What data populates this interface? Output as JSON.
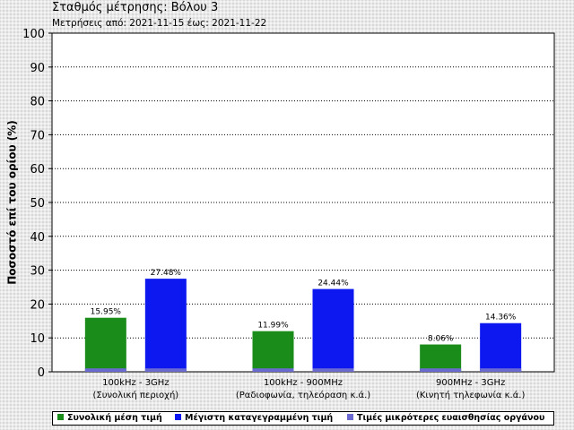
{
  "title": "Σταθμός μέτρησης: Βόλου 3",
  "subtitle": "Μετρήσεις από: 2021-11-15 έως: 2021-11-22",
  "colors": {
    "average": "#1a8c1a",
    "maximum": "#0d17f0",
    "below_sensitivity": "#6a6ad0"
  },
  "chart_data": {
    "type": "bar",
    "ylabel": "Ποσοστό επί του ορίου (%)",
    "ylim": [
      0,
      100
    ],
    "yticks": [
      0,
      10,
      20,
      30,
      40,
      50,
      60,
      70,
      80,
      90,
      100
    ],
    "grid": true,
    "legend_position": "bottom",
    "categories": [
      {
        "line1": "100kHz - 3GHz",
        "line2": "(Συνολική περιοχή)"
      },
      {
        "line1": "100kHz - 900MHz",
        "line2": "(Ραδιοφωνία, τηλεόραση κ.ά.)"
      },
      {
        "line1": "900MHz - 3GHz",
        "line2": "(Κινητή τηλεφωνία κ.ά.)"
      }
    ],
    "series": [
      {
        "name": "Συνολική μέση τιμή",
        "values": [
          15.95,
          11.99,
          8.06
        ],
        "labels": [
          "15.95%",
          "11.99%",
          "8.06%"
        ]
      },
      {
        "name": "Μέγιστη καταγεγραμμένη τιμή",
        "values": [
          27.48,
          24.44,
          14.36
        ],
        "labels": [
          "27.48%",
          "24.44%",
          "14.36%"
        ]
      },
      {
        "name": "Τιμές μικρότερες ευαισθησίας οργάνου",
        "values": [
          1,
          1,
          1
        ]
      }
    ]
  }
}
